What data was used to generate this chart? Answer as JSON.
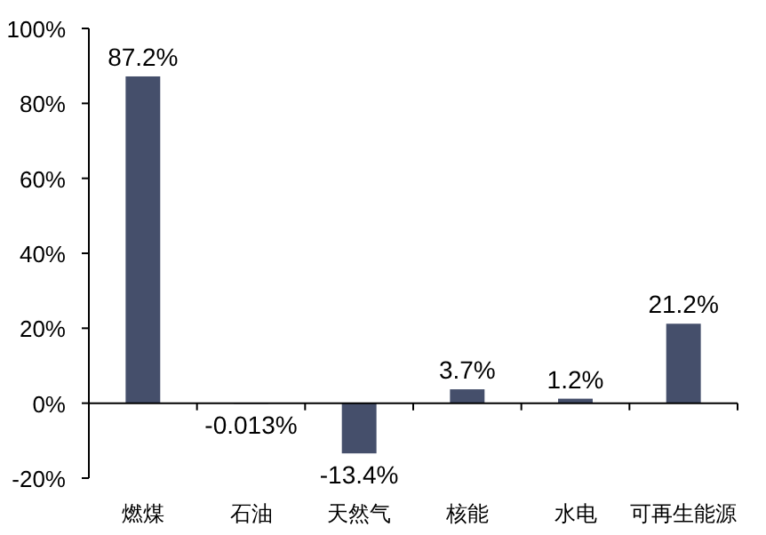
{
  "chart_data": {
    "type": "bar",
    "categories": [
      "燃煤",
      "石油",
      "天然气",
      "核能",
      "水电",
      "可再生能源"
    ],
    "values": [
      87.2,
      -0.013,
      -13.4,
      3.7,
      1.2,
      21.2
    ],
    "value_labels": [
      "87.2%",
      "-0.013%",
      "-13.4%",
      "3.7%",
      "1.2%",
      "21.2%"
    ],
    "color": "#454f6b",
    "ylim": [
      -20,
      100
    ],
    "yticks": [
      {
        "value": -20,
        "label": "-20%"
      },
      {
        "value": 0,
        "label": "0%"
      },
      {
        "value": 20,
        "label": "20%"
      },
      {
        "value": 40,
        "label": "40%"
      },
      {
        "value": 60,
        "label": "60%"
      },
      {
        "value": 80,
        "label": "80%"
      },
      {
        "value": 100,
        "label": "100%"
      }
    ],
    "orientation": "vertical"
  }
}
